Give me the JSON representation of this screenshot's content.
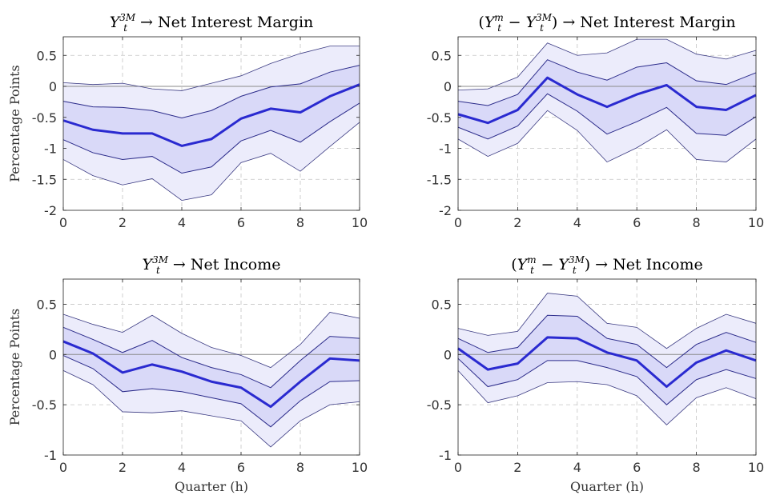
{
  "chart_data": [
    {
      "type": "line",
      "title_parts": {
        "sym": "Y",
        "sup": "3M",
        "sub": "t",
        "prefix": "",
        "suffix": "",
        "arrow": "→",
        "target": "Net Interest Margin"
      },
      "ylabel": "Percentage Points",
      "xlabel": "",
      "xlim": [
        0,
        10
      ],
      "ylim": [
        -2,
        0.8
      ],
      "xticks": [
        "0",
        "2",
        "4",
        "6",
        "8",
        "10"
      ],
      "yticks": [
        "0.5",
        "0",
        "-0.5",
        "-1",
        "-1.5",
        "-2"
      ],
      "x": [
        0,
        1,
        2,
        3,
        4,
        5,
        6,
        7,
        8,
        9,
        10
      ],
      "series": [
        {
          "role": "outer_upper",
          "values": [
            0.06,
            0.03,
            0.05,
            -0.04,
            -0.07,
            0.05,
            0.17,
            0.37,
            0.53,
            0.65,
            0.65
          ]
        },
        {
          "role": "inner_upper",
          "values": [
            -0.24,
            -0.33,
            -0.34,
            -0.39,
            -0.51,
            -0.39,
            -0.16,
            -0.01,
            0.04,
            0.23,
            0.34
          ]
        },
        {
          "role": "median",
          "values": [
            -0.55,
            -0.7,
            -0.76,
            -0.76,
            -0.96,
            -0.85,
            -0.52,
            -0.36,
            -0.42,
            -0.16,
            0.03
          ]
        },
        {
          "role": "inner_lower",
          "values": [
            -0.86,
            -1.07,
            -1.18,
            -1.13,
            -1.4,
            -1.3,
            -0.88,
            -0.71,
            -0.9,
            -0.57,
            -0.27
          ]
        },
        {
          "role": "outer_lower",
          "values": [
            -1.18,
            -1.44,
            -1.59,
            -1.49,
            -1.84,
            -1.75,
            -1.23,
            -1.08,
            -1.37,
            -0.97,
            -0.58
          ]
        }
      ]
    },
    {
      "type": "line",
      "title_parts": {
        "sym": "Y",
        "sup": "m",
        "sub": "t",
        "prefix": "(",
        "minus": "−",
        "sym2": "Y",
        "sup2": "3M",
        "sub2": "t",
        "suffix": ")",
        "arrow": "→",
        "target": "Net Interest Margin"
      },
      "ylabel": "",
      "xlabel": "",
      "xlim": [
        0,
        10
      ],
      "ylim": [
        -2,
        0.8
      ],
      "xticks": [
        "0",
        "2",
        "4",
        "6",
        "8",
        "10"
      ],
      "yticks": [
        "0.5",
        "0",
        "-0.5",
        "-1",
        "-1.5",
        "-2"
      ],
      "x": [
        0,
        1,
        2,
        3,
        4,
        5,
        6,
        7,
        8,
        9,
        10
      ],
      "series": [
        {
          "role": "outer_upper",
          "values": [
            -0.06,
            -0.04,
            0.15,
            0.7,
            0.5,
            0.54,
            0.76,
            0.76,
            0.52,
            0.44,
            0.58
          ]
        },
        {
          "role": "inner_upper",
          "values": [
            -0.24,
            -0.31,
            -0.13,
            0.43,
            0.23,
            0.1,
            0.31,
            0.38,
            0.09,
            0.03,
            0.22
          ]
        },
        {
          "role": "median",
          "values": [
            -0.45,
            -0.59,
            -0.38,
            0.14,
            -0.13,
            -0.33,
            -0.13,
            0.02,
            -0.33,
            -0.38,
            -0.14
          ]
        },
        {
          "role": "inner_lower",
          "values": [
            -0.66,
            -0.85,
            -0.64,
            -0.12,
            -0.4,
            -0.77,
            -0.57,
            -0.34,
            -0.76,
            -0.79,
            -0.49
          ]
        },
        {
          "role": "outer_lower",
          "values": [
            -0.85,
            -1.13,
            -0.92,
            -0.39,
            -0.71,
            -1.22,
            -0.99,
            -0.7,
            -1.18,
            -1.22,
            -0.85
          ]
        }
      ]
    },
    {
      "type": "line",
      "title_parts": {
        "sym": "Y",
        "sup": "3M",
        "sub": "t",
        "prefix": "",
        "suffix": "",
        "arrow": "→",
        "target": "Net Income"
      },
      "ylabel": "Percentage Points",
      "xlabel": "Quarter (h)",
      "xlim": [
        0,
        10
      ],
      "ylim": [
        -1,
        0.75
      ],
      "xticks": [
        "0",
        "2",
        "4",
        "6",
        "8",
        "10"
      ],
      "yticks": [
        "0.5",
        "0",
        "-0.5",
        "-1"
      ],
      "x": [
        0,
        1,
        2,
        3,
        4,
        5,
        6,
        7,
        8,
        9,
        10
      ],
      "series": [
        {
          "role": "outer_upper",
          "values": [
            0.4,
            0.3,
            0.22,
            0.39,
            0.21,
            0.07,
            -0.01,
            -0.13,
            0.1,
            0.42,
            0.36
          ]
        },
        {
          "role": "inner_upper",
          "values": [
            0.27,
            0.15,
            0.02,
            0.14,
            -0.03,
            -0.13,
            -0.2,
            -0.33,
            -0.06,
            0.18,
            0.16
          ]
        },
        {
          "role": "median",
          "values": [
            0.13,
            0.01,
            -0.18,
            -0.1,
            -0.17,
            -0.27,
            -0.33,
            -0.52,
            -0.27,
            -0.04,
            -0.06
          ]
        },
        {
          "role": "inner_lower",
          "values": [
            -0.01,
            -0.14,
            -0.37,
            -0.34,
            -0.37,
            -0.43,
            -0.49,
            -0.72,
            -0.46,
            -0.27,
            -0.26
          ]
        },
        {
          "role": "outer_lower",
          "values": [
            -0.16,
            -0.3,
            -0.57,
            -0.58,
            -0.56,
            -0.61,
            -0.66,
            -0.92,
            -0.66,
            -0.5,
            -0.47
          ]
        }
      ]
    },
    {
      "type": "line",
      "title_parts": {
        "sym": "Y",
        "sup": "m",
        "sub": "t",
        "prefix": "(",
        "minus": "−",
        "sym2": "Y",
        "sup2": "3M",
        "sub2": "t",
        "suffix": ")",
        "arrow": "→",
        "target": "Net Income"
      },
      "ylabel": "",
      "xlabel": "Quarter (h)",
      "xlim": [
        0,
        10
      ],
      "ylim": [
        -1,
        0.75
      ],
      "xticks": [
        "0",
        "2",
        "4",
        "6",
        "8",
        "10"
      ],
      "yticks": [
        "0.5",
        "0",
        "-0.5",
        "-1"
      ],
      "x": [
        0,
        1,
        2,
        3,
        4,
        5,
        6,
        7,
        8,
        9,
        10
      ],
      "series": [
        {
          "role": "outer_upper",
          "values": [
            0.26,
            0.19,
            0.23,
            0.61,
            0.58,
            0.31,
            0.27,
            0.06,
            0.26,
            0.4,
            0.31
          ]
        },
        {
          "role": "inner_upper",
          "values": [
            0.16,
            0.02,
            0.07,
            0.39,
            0.38,
            0.16,
            0.1,
            -0.13,
            0.1,
            0.22,
            0.12
          ]
        },
        {
          "role": "median",
          "values": [
            0.06,
            -0.15,
            -0.09,
            0.17,
            0.16,
            0.02,
            -0.06,
            -0.32,
            -0.08,
            0.04,
            -0.06
          ]
        },
        {
          "role": "inner_lower",
          "values": [
            -0.04,
            -0.32,
            -0.25,
            -0.06,
            -0.06,
            -0.13,
            -0.22,
            -0.5,
            -0.25,
            -0.15,
            -0.24
          ]
        },
        {
          "role": "outer_lower",
          "values": [
            -0.16,
            -0.48,
            -0.41,
            -0.28,
            -0.27,
            -0.3,
            -0.41,
            -0.7,
            -0.43,
            -0.33,
            -0.44
          ]
        }
      ]
    }
  ],
  "colors": {
    "outer_band": "#ececfb",
    "inner_band": "#d9d9f8",
    "band_edge_outer": "#3b3b82",
    "band_edge_inner": "#2b2b8a",
    "median_line": "#2a2ad0"
  }
}
